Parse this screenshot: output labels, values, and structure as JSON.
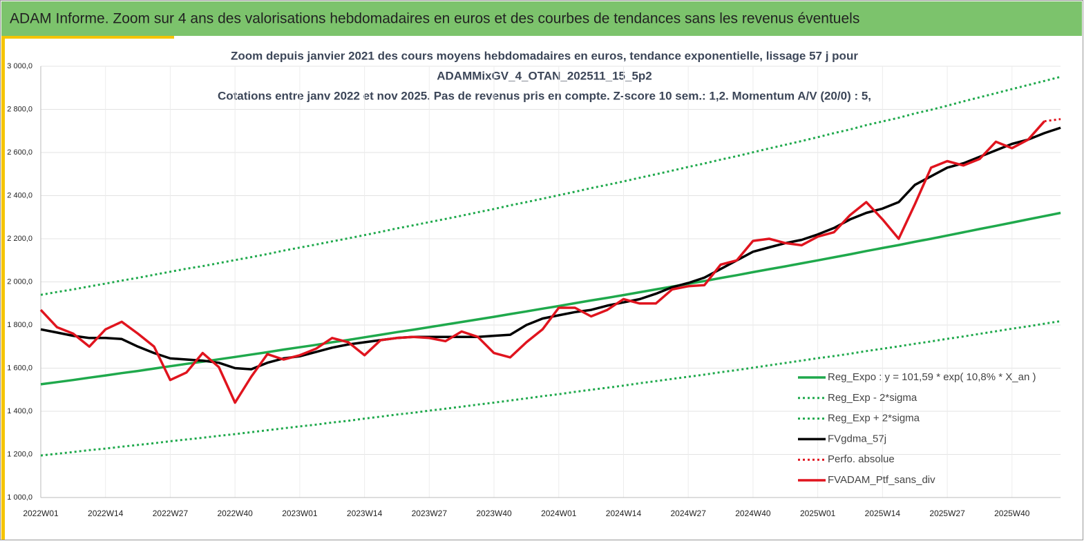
{
  "chart_data": {
    "type": "line",
    "title": "ADAM Informe. Zoom sur 4 ans des valorisations hebdomadaires en euros et des courbes de tendances sans les revenus éventuels",
    "subtitle": [
      "Zoom depuis janvier 2021 des cours moyens hebdomadaires  en euros, tendance exponentielle, lissage 57 j pour",
      "ADAMMixGV_4_OTAN_202511_15_5p2",
      "Cotations entre janv 2022 et nov 2025. Pas de revenus pris en compte. Z-score 10 sem.: 1,2. Momentum A/V (20/0) : 5,"
    ],
    "categories": [
      "2022W01",
      null,
      null,
      null,
      "2022W14",
      null,
      null,
      null,
      "2022W27",
      null,
      null,
      null,
      "2022W40",
      null,
      null,
      null,
      "2023W01",
      null,
      null,
      null,
      "2023W14",
      null,
      null,
      null,
      "2023W27",
      null,
      null,
      null,
      "2023W40",
      null,
      null,
      null,
      "2024W01",
      null,
      null,
      null,
      "2024W14",
      null,
      null,
      null,
      "2024W27",
      null,
      null,
      null,
      "2024W40",
      null,
      null,
      null,
      "2025W01",
      null,
      null,
      null,
      "2025W14",
      null,
      null,
      null,
      "2025W27",
      null,
      null,
      null,
      "2025W40",
      null,
      null,
      null
    ],
    "series": [
      {
        "name": "Reg_Expo : y = 101,59 * exp( 10,8% *  X_an )",
        "color": "#1fa94c",
        "style": "solid",
        "values": [
          1525,
          1535,
          1545,
          1556,
          1566,
          1577,
          1587,
          1598,
          1609,
          1620,
          1630,
          1641,
          1652,
          1663,
          1674,
          1686,
          1697,
          1708,
          1720,
          1731,
          1743,
          1755,
          1767,
          1778,
          1790,
          1802,
          1814,
          1826,
          1838,
          1851,
          1863,
          1876,
          1888,
          1901,
          1914,
          1926,
          1939,
          1952,
          1965,
          1978,
          1991,
          2004,
          2018,
          2031,
          2045,
          2059,
          2072,
          2086,
          2100,
          2114,
          2128,
          2143,
          2157,
          2171,
          2186,
          2200,
          2215,
          2230,
          2245,
          2260,
          2275,
          2290,
          2305,
          2320
        ]
      },
      {
        "name": "Reg_Exp - 2*sigma",
        "color": "#1fa94c",
        "style": "dotted",
        "values": [
          1195,
          1203,
          1211,
          1220,
          1227,
          1236,
          1244,
          1252,
          1261,
          1269,
          1277,
          1286,
          1294,
          1303,
          1312,
          1321,
          1330,
          1338,
          1348,
          1356,
          1366,
          1375,
          1385,
          1393,
          1403,
          1412,
          1421,
          1431,
          1440,
          1450,
          1460,
          1470,
          1479,
          1490,
          1500,
          1509,
          1519,
          1530,
          1540,
          1550,
          1560,
          1570,
          1581,
          1591,
          1602,
          1613,
          1624,
          1635,
          1646,
          1656,
          1667,
          1679,
          1690,
          1701,
          1713,
          1724,
          1736,
          1747,
          1759,
          1771,
          1783,
          1794,
          1806,
          1818
        ]
      },
      {
        "name": "Reg_Exp + 2*sigma",
        "color": "#1fa94c",
        "style": "dotted",
        "values": [
          1940,
          1953,
          1965,
          1979,
          1992,
          2006,
          2019,
          2033,
          2047,
          2061,
          2073,
          2087,
          2101,
          2115,
          2129,
          2145,
          2159,
          2173,
          2188,
          2202,
          2217,
          2232,
          2248,
          2262,
          2277,
          2292,
          2307,
          2323,
          2338,
          2355,
          2370,
          2386,
          2402,
          2418,
          2435,
          2450,
          2466,
          2483,
          2499,
          2516,
          2533,
          2549,
          2567,
          2583,
          2601,
          2619,
          2636,
          2653,
          2671,
          2690,
          2707,
          2727,
          2744,
          2761,
          2781,
          2798,
          2817,
          2837,
          2856,
          2875,
          2894,
          2913,
          2932,
          2951
        ]
      },
      {
        "name": "FVgdma_57j",
        "color": "#000000",
        "style": "solid",
        "values": [
          1780,
          1765,
          1750,
          1740,
          1740,
          1735,
          1700,
          1670,
          1645,
          1640,
          1635,
          1625,
          1600,
          1595,
          1625,
          1645,
          1655,
          1675,
          1695,
          1710,
          1720,
          1730,
          1740,
          1745,
          1745,
          1745,
          1745,
          1745,
          1750,
          1755,
          1800,
          1830,
          1845,
          1860,
          1870,
          1890,
          1905,
          1920,
          1945,
          1975,
          1995,
          2020,
          2060,
          2100,
          2140,
          2160,
          2180,
          2195,
          2220,
          2250,
          2290,
          2320,
          2340,
          2370,
          2450,
          2490,
          2530,
          2550,
          2580,
          2610,
          2640,
          2660,
          2690,
          2715
        ]
      },
      {
        "name": "Perfo. absolue",
        "color": "#e0141e",
        "style": "dotted",
        "values": [
          null,
          null,
          null,
          null,
          null,
          null,
          null,
          null,
          null,
          null,
          null,
          null,
          null,
          null,
          null,
          null,
          null,
          null,
          null,
          null,
          null,
          null,
          null,
          null,
          null,
          null,
          null,
          null,
          null,
          null,
          null,
          null,
          null,
          null,
          null,
          null,
          null,
          null,
          null,
          null,
          null,
          null,
          null,
          null,
          null,
          null,
          null,
          null,
          null,
          null,
          null,
          null,
          null,
          null,
          null,
          null,
          null,
          null,
          null,
          null,
          null,
          null,
          2745,
          2755
        ]
      },
      {
        "name": "FVADAM_Ptf_sans_div",
        "color": "#e0141e",
        "style": "solid",
        "values": [
          1870,
          1790,
          1760,
          1700,
          1780,
          1815,
          1760,
          1700,
          1545,
          1580,
          1670,
          1605,
          1440,
          1560,
          1665,
          1640,
          1660,
          1690,
          1740,
          1720,
          1660,
          1730,
          1740,
          1745,
          1740,
          1725,
          1770,
          1745,
          1670,
          1650,
          1720,
          1780,
          1880,
          1880,
          1840,
          1870,
          1920,
          1900,
          1900,
          1965,
          1980,
          1985,
          2080,
          2100,
          2190,
          2200,
          2180,
          2170,
          2210,
          2230,
          2310,
          2370,
          2290,
          2200,
          2360,
          2530,
          2560,
          2540,
          2570,
          2650,
          2620,
          2660,
          2745,
          null
        ]
      }
    ],
    "ylim": [
      1000,
      3000
    ],
    "yticks": [
      {
        "value": 1000,
        "label": "1 000,0"
      },
      {
        "value": 1200,
        "label": "1 200,0"
      },
      {
        "value": 1400,
        "label": "1 400,0"
      },
      {
        "value": 1600,
        "label": "1 600,0"
      },
      {
        "value": 1800,
        "label": "1 800,0"
      },
      {
        "value": 2000,
        "label": "2 000,0"
      },
      {
        "value": 2200,
        "label": "2 200,0"
      },
      {
        "value": 2400,
        "label": "2 400,0"
      },
      {
        "value": 2600,
        "label": "2 600,0"
      },
      {
        "value": 2800,
        "label": "2 800,0"
      },
      {
        "value": 3000,
        "label": "3 000,0"
      }
    ],
    "grid": true,
    "legend": "lower right"
  }
}
